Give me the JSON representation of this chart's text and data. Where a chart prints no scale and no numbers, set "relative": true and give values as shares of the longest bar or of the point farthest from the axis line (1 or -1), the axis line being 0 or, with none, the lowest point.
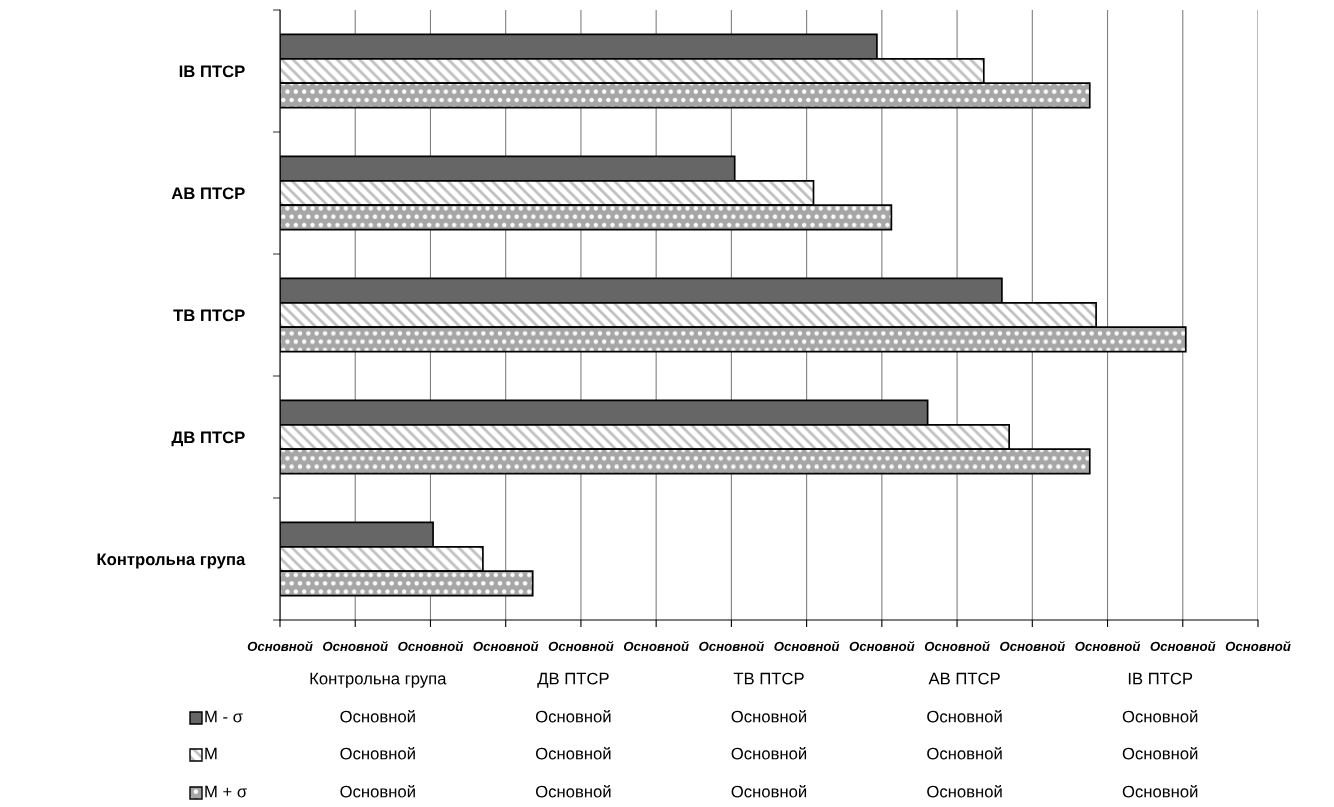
{
  "chart_data": {
    "type": "bar",
    "orientation": "horizontal",
    "relative": true,
    "categories": [
      "ІВ ПТСР",
      "АВ ПТСР",
      "ТВ ПТСР",
      "ДВ ПТСР",
      "Контрольна група"
    ],
    "series": [
      {
        "name": "M - σ",
        "color": "#666666",
        "values": [
          0.659,
          0.502,
          0.797,
          0.715,
          0.169
        ]
      },
      {
        "name": "M",
        "color": "#c0c0c0",
        "values": [
          0.777,
          0.589,
          0.901,
          0.805,
          0.224
        ]
      },
      {
        "name": "M + σ",
        "color": "#a6a6a6",
        "values": [
          0.894,
          0.675,
          1.0,
          0.894,
          0.279
        ]
      }
    ],
    "annotations": [
      "Основной",
      "Основной",
      "Основной",
      "Основной",
      "Основной",
      "Основной",
      "Основной",
      "Основной",
      "Основной",
      "Основной",
      "Основной",
      "Основной",
      "Основной",
      "Основной",
      "Основной",
      "Основной",
      "Основной",
      "Основной",
      "Основной",
      "Основной",
      "Основной",
      "Основной",
      "Основной",
      "Основной",
      "Основной",
      "Основной",
      "Основной",
      "Основной",
      "Основной"
    ],
    "grid": "x",
    "legend": "bottom"
  }
}
